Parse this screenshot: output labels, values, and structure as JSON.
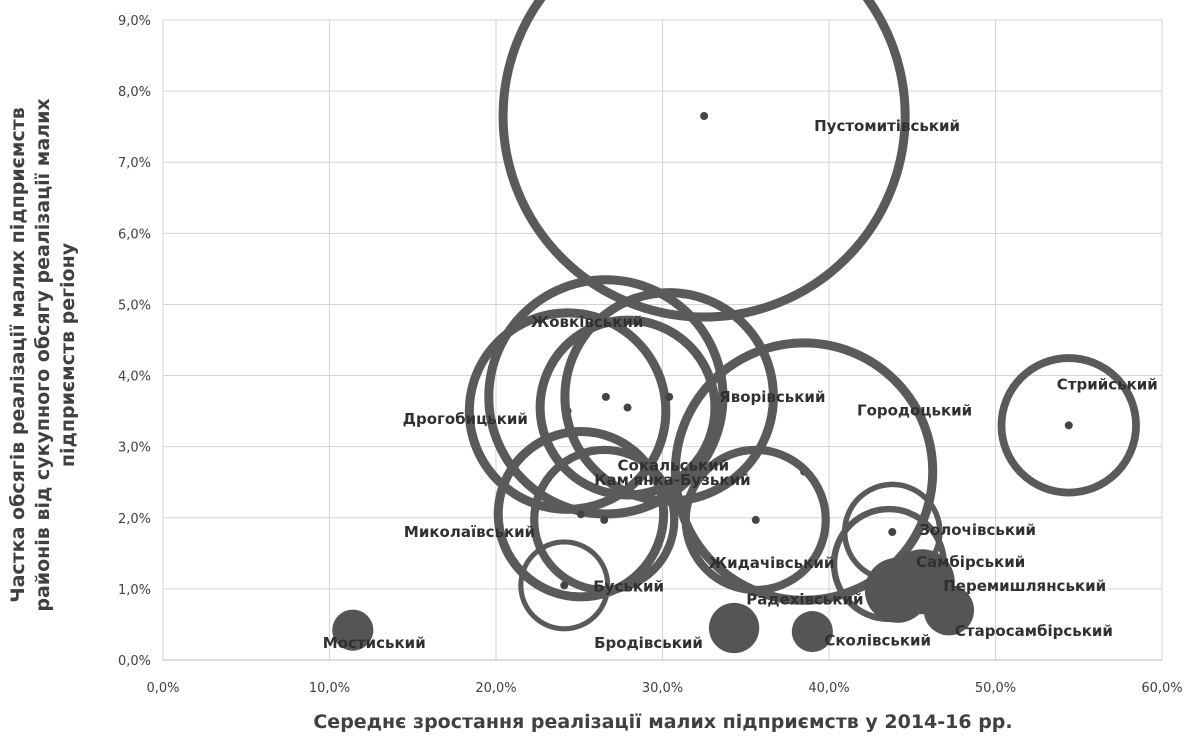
{
  "chart_data": {
    "type": "bubble",
    "xlabel": "Середнє зростання реалізації  малих підприємств у 2014-16 рр.",
    "ylabel_lines": [
      "Частка обсягів реалізації  малих підприємств",
      "районів від сукупного обсягу реалізації малих",
      "підприємств регіону"
    ],
    "xlim": [
      0,
      60
    ],
    "ylim": [
      0,
      9
    ],
    "x_ticks": [
      "0,0%",
      "10,0%",
      "20,0%",
      "30,0%",
      "40,0%",
      "50,0%",
      "60,0%"
    ],
    "y_ticks": [
      "0,0%",
      "1,0%",
      "2,0%",
      "3,0%",
      "4,0%",
      "5,0%",
      "6,0%",
      "7,0%",
      "8,0%",
      "9,0%"
    ],
    "x_tick_values": [
      0,
      10,
      20,
      30,
      40,
      50,
      60
    ],
    "y_tick_values": [
      0,
      1,
      2,
      3,
      4,
      5,
      6,
      7,
      8,
      9
    ],
    "grid": true,
    "points": [
      {
        "label": "Пустомитівський",
        "x": 32.5,
        "y": 7.65,
        "size": 10
      },
      {
        "label": "Жовківський",
        "x": 26.6,
        "y": 3.7,
        "size": 3.5
      },
      {
        "label": "Дрогобицький",
        "x": 24.3,
        "y": 3.5,
        "size": 2.5
      },
      {
        "label": "Яворівський",
        "x": 30.4,
        "y": 3.7,
        "size": 2.8
      },
      {
        "label": "Сокальський",
        "x": 27.9,
        "y": 3.55,
        "size": 2.0
      },
      {
        "label": "Городоцький",
        "x": 38.5,
        "y": 2.65,
        "size": 4.2
      },
      {
        "label": "Стрийський",
        "x": 54.4,
        "y": 3.3,
        "size": 1.2
      },
      {
        "label": "Кам'янка-Бузький",
        "x": 26.5,
        "y": 1.97,
        "size": 1.3
      },
      {
        "label": "Миколаївський",
        "x": 25.1,
        "y": 2.05,
        "size": 1.8
      },
      {
        "label": "Жидачівський",
        "x": 35.6,
        "y": 1.97,
        "size": 1.3
      },
      {
        "label": "Золочівський",
        "x": 43.8,
        "y": 1.8,
        "size": 0.6
      },
      {
        "label": "Самбірський",
        "x": 43.6,
        "y": 1.35,
        "size": 0.8
      },
      {
        "label": "Перемишлянський",
        "x": 45.6,
        "y": 1.1,
        "size": 0.25
      },
      {
        "label": "Радехівський",
        "x": 44.1,
        "y": 0.98,
        "size": 0.25
      },
      {
        "label": "Буський",
        "x": 24.1,
        "y": 1.05,
        "size": 0.5
      },
      {
        "label": "Старосамбірський",
        "x": 47.2,
        "y": 0.7,
        "size": 0.15
      },
      {
        "label": "Бродівський",
        "x": 34.3,
        "y": 0.45,
        "size": 0.15
      },
      {
        "label": "Сколівський",
        "x": 39.0,
        "y": 0.4,
        "size": 0.1
      },
      {
        "label": "Мостиський",
        "x": 11.4,
        "y": 0.42,
        "size": 0.1
      }
    ]
  }
}
